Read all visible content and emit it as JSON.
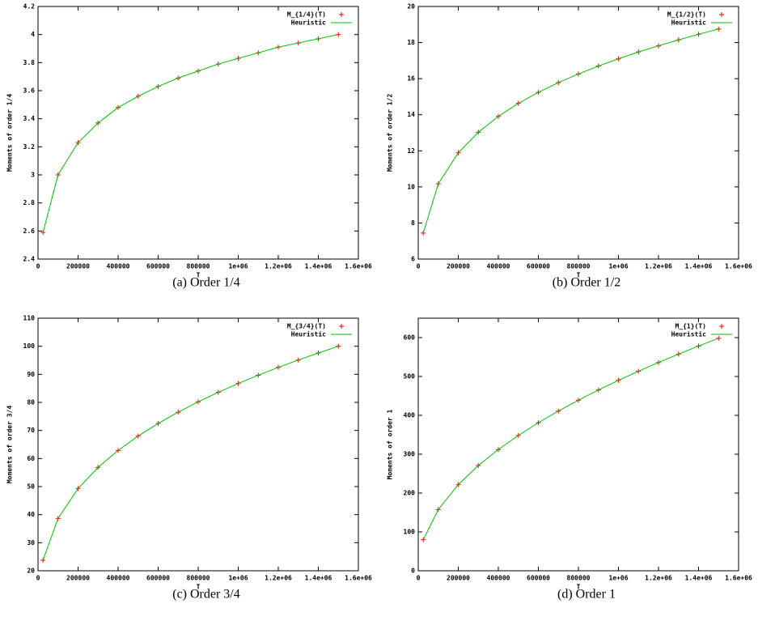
{
  "chart_data": [
    {
      "type": "line",
      "caption": "(a) Order 1/4",
      "x_label": "T",
      "y_label": "Moments of order 1/4",
      "x": [
        25000,
        100000,
        200000,
        300000,
        400000,
        500000,
        600000,
        700000,
        800000,
        900000,
        1000000,
        1100000,
        1200000,
        1300000,
        1400000,
        1500000
      ],
      "series": [
        {
          "name": "M_{1/4}(T)",
          "color": "#ff0000",
          "mode": "markers",
          "values": [
            2.59,
            3.0,
            3.23,
            3.37,
            3.48,
            3.56,
            3.63,
            3.69,
            3.74,
            3.79,
            3.83,
            3.87,
            3.91,
            3.94,
            3.97,
            4.0
          ]
        },
        {
          "name": "Heuristic",
          "color": "#00c000",
          "mode": "lines",
          "values": [
            2.59,
            3.0,
            3.23,
            3.37,
            3.48,
            3.56,
            3.63,
            3.69,
            3.74,
            3.79,
            3.83,
            3.87,
            3.91,
            3.94,
            3.97,
            4.0
          ]
        }
      ],
      "xlim": [
        0,
        1600000
      ],
      "xticks": [
        0,
        200000,
        400000,
        600000,
        800000,
        {
          "value": 1000000,
          "label": "1e+06"
        },
        {
          "value": 1200000,
          "label": "1.2e+06"
        },
        {
          "value": 1400000,
          "label": "1.4e+06"
        },
        {
          "value": 1600000,
          "label": "1.6e+06"
        }
      ],
      "ylim": [
        2.4,
        4.2
      ],
      "yticks": [
        2.4,
        2.6,
        2.8,
        3,
        3.2,
        3.4,
        3.6,
        3.8,
        4,
        4.2
      ],
      "legend": "top-right"
    },
    {
      "type": "line",
      "caption": "(b) Order 1/2",
      "x_label": "T",
      "y_label": "Moments of order 1/2",
      "x": [
        25000,
        100000,
        200000,
        300000,
        400000,
        500000,
        600000,
        700000,
        800000,
        900000,
        1000000,
        1100000,
        1200000,
        1300000,
        1400000,
        1500000
      ],
      "series": [
        {
          "name": "M_{1/2}(T)",
          "color": "#ff0000",
          "mode": "markers",
          "values": [
            7.44,
            10.17,
            11.89,
            13.03,
            13.91,
            14.63,
            15.24,
            15.78,
            16.26,
            16.7,
            17.1,
            17.48,
            17.82,
            18.15,
            18.46,
            18.75
          ]
        },
        {
          "name": "Heuristic",
          "color": "#00c000",
          "mode": "lines",
          "values": [
            7.44,
            10.17,
            11.89,
            13.03,
            13.91,
            14.63,
            15.24,
            15.78,
            16.26,
            16.7,
            17.1,
            17.48,
            17.82,
            18.15,
            18.46,
            18.75
          ]
        }
      ],
      "xlim": [
        0,
        1600000
      ],
      "xticks": [
        0,
        200000,
        400000,
        600000,
        800000,
        {
          "value": 1000000,
          "label": "1e+06"
        },
        {
          "value": 1200000,
          "label": "1.2e+06"
        },
        {
          "value": 1400000,
          "label": "1.4e+06"
        },
        {
          "value": 1600000,
          "label": "1.6e+06"
        }
      ],
      "ylim": [
        6,
        20
      ],
      "yticks": [
        6,
        8,
        10,
        12,
        14,
        16,
        18,
        20
      ],
      "legend": "top-right"
    },
    {
      "type": "line",
      "caption": "(c) Order 3/4",
      "x_label": "T",
      "y_label": "Moments of order 3/4",
      "x": [
        25000,
        100000,
        200000,
        300000,
        400000,
        500000,
        600000,
        700000,
        800000,
        900000,
        1000000,
        1100000,
        1200000,
        1300000,
        1400000,
        1500000
      ],
      "series": [
        {
          "name": "M_{3/4}(T)",
          "color": "#ff0000",
          "mode": "markers",
          "values": [
            23.76,
            38.65,
            49.3,
            56.84,
            62.88,
            68.0,
            72.49,
            76.52,
            80.19,
            83.58,
            86.73,
            89.68,
            92.46,
            95.09,
            97.6,
            100.0
          ]
        },
        {
          "name": "Heuristic",
          "color": "#00c000",
          "mode": "lines",
          "values": [
            23.76,
            38.65,
            49.3,
            56.84,
            62.88,
            68.0,
            72.49,
            76.52,
            80.19,
            83.58,
            86.73,
            89.68,
            92.46,
            95.09,
            97.6,
            100.0
          ]
        }
      ],
      "xlim": [
        0,
        1600000
      ],
      "xticks": [
        0,
        200000,
        400000,
        600000,
        800000,
        {
          "value": 1000000,
          "label": "1e+06"
        },
        {
          "value": 1200000,
          "label": "1.2e+06"
        },
        {
          "value": 1400000,
          "label": "1.4e+06"
        },
        {
          "value": 1600000,
          "label": "1.6e+06"
        }
      ],
      "ylim": [
        20,
        110
      ],
      "yticks": [
        20,
        30,
        40,
        50,
        60,
        70,
        80,
        90,
        100,
        110
      ],
      "legend": "top-right"
    },
    {
      "type": "line",
      "caption": "(d) Order 1",
      "x_label": "T",
      "y_label": "Moments of order 1",
      "x": [
        25000,
        100000,
        200000,
        300000,
        400000,
        500000,
        600000,
        700000,
        800000,
        900000,
        1000000,
        1100000,
        1200000,
        1300000,
        1400000,
        1500000
      ],
      "series": [
        {
          "name": "M_{1}(T)",
          "color": "#ff0000",
          "mode": "markers",
          "values": [
            79.6,
            157.6,
            221.7,
            270.8,
            312.0,
            348.2,
            381.0,
            411.0,
            438.9,
            465.2,
            490.0,
            513.5,
            536.0,
            557.5,
            578.3,
            598.3
          ]
        },
        {
          "name": "Heuristic",
          "color": "#00c000",
          "mode": "lines",
          "values": [
            79.6,
            157.6,
            221.7,
            270.8,
            312.0,
            348.2,
            381.0,
            411.0,
            438.9,
            465.2,
            490.0,
            513.5,
            536.0,
            557.5,
            578.3,
            598.3
          ]
        }
      ],
      "xlim": [
        0,
        1600000
      ],
      "xticks": [
        0,
        200000,
        400000,
        600000,
        800000,
        {
          "value": 1000000,
          "label": "1e+06"
        },
        {
          "value": 1200000,
          "label": "1.2e+06"
        },
        {
          "value": 1400000,
          "label": "1.4e+06"
        },
        {
          "value": 1600000,
          "label": "1.6e+06"
        }
      ],
      "ylim": [
        0,
        650
      ],
      "yticks": [
        0,
        100,
        200,
        300,
        400,
        500,
        600
      ],
      "legend": "top-right"
    }
  ]
}
